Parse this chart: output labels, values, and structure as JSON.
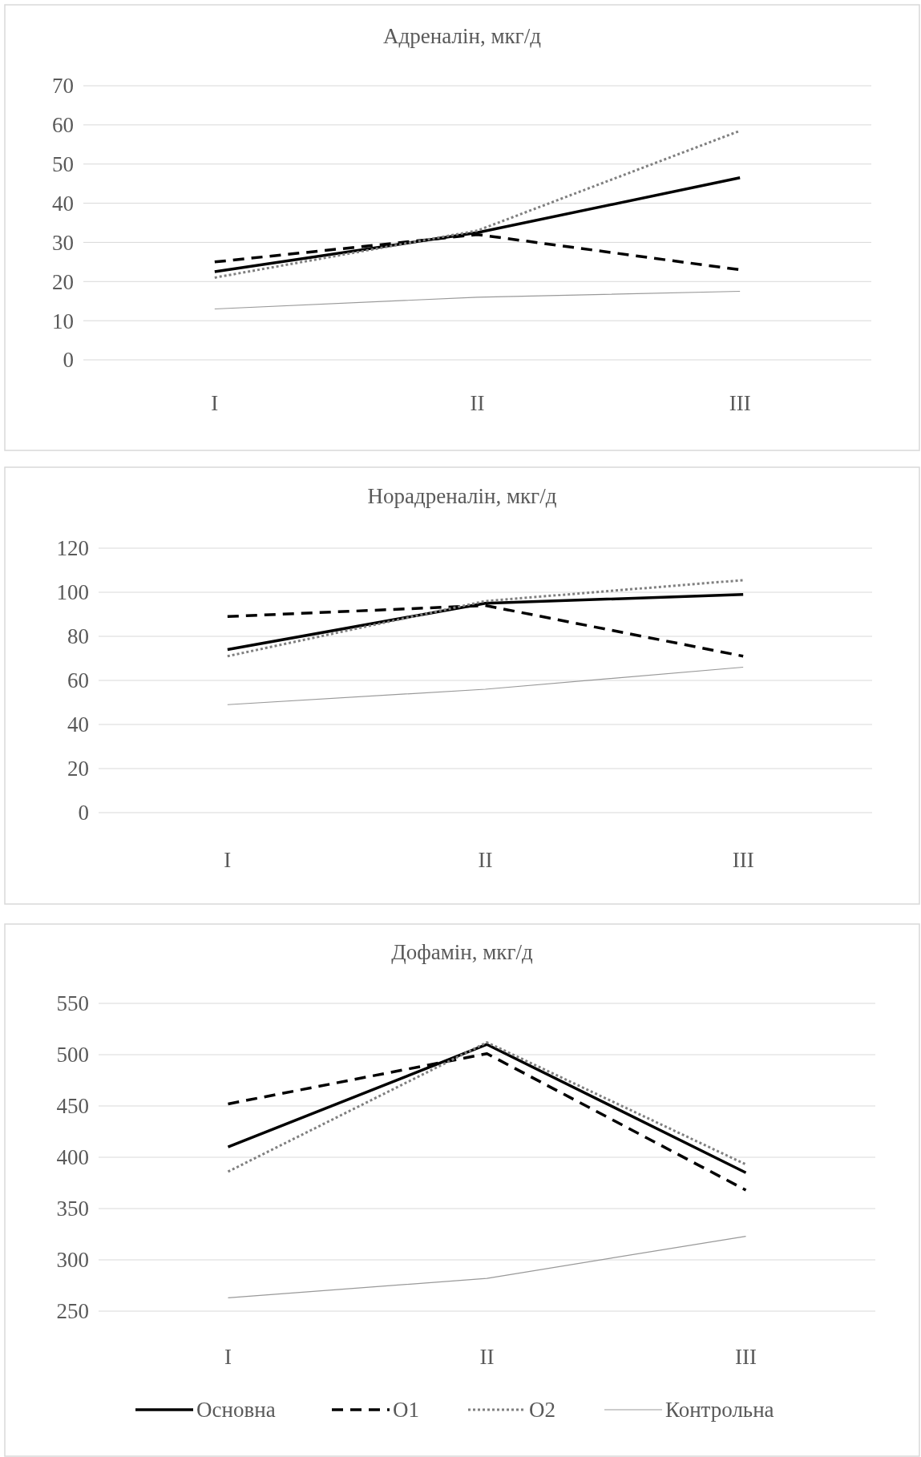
{
  "chart_data": [
    {
      "type": "line",
      "title": "Адреналін, мкг/д",
      "categories": [
        "I",
        "II",
        "III"
      ],
      "ylim": [
        0,
        70
      ],
      "yticks": [
        0,
        10,
        20,
        30,
        40,
        50,
        60,
        70
      ],
      "grid": "y",
      "legend": false,
      "series": [
        {
          "color": "#000000",
          "line_style": "solid",
          "values": [
            22.5,
            32.5,
            46.5
          ]
        },
        {
          "color": "#000000",
          "line_style": "dashed",
          "values": [
            25,
            32,
            23
          ]
        },
        {
          "color": "#808080",
          "line_style": "dotted",
          "values": [
            21,
            33,
            58.5
          ]
        },
        {
          "color": "#999999",
          "line_style": "solid",
          "values": [
            13,
            16,
            17.5
          ]
        }
      ]
    },
    {
      "type": "line",
      "title": "Норадреналін, мкг/д",
      "categories": [
        "I",
        "II",
        "III"
      ],
      "ylim": [
        0,
        120
      ],
      "yticks": [
        0,
        20,
        40,
        60,
        80,
        100,
        120
      ],
      "grid": "y",
      "legend": false,
      "series": [
        {
          "color": "#000000",
          "line_style": "solid",
          "values": [
            74,
            95,
            99
          ]
        },
        {
          "color": "#000000",
          "line_style": "dashed",
          "values": [
            89,
            94,
            71
          ]
        },
        {
          "color": "#808080",
          "line_style": "dotted",
          "values": [
            71,
            96,
            105.5
          ]
        },
        {
          "color": "#999999",
          "line_style": "solid",
          "values": [
            49,
            56,
            66
          ]
        }
      ]
    },
    {
      "type": "line",
      "title": "Дофамін, мкг/д",
      "categories": [
        "I",
        "II",
        "III"
      ],
      "ylim": [
        250,
        550
      ],
      "yticks": [
        250,
        300,
        350,
        400,
        450,
        500,
        550
      ],
      "grid": "y",
      "legend": "bottom",
      "series": [
        {
          "name": "Основна",
          "color": "#000000",
          "line_style": "solid",
          "values": [
            410,
            510,
            385
          ]
        },
        {
          "name": "О1",
          "color": "#000000",
          "line_style": "dashed",
          "values": [
            452,
            501,
            368
          ]
        },
        {
          "name": "О2",
          "color": "#808080",
          "line_style": "dotted",
          "values": [
            386,
            512,
            393
          ]
        },
        {
          "name": "Контрольна",
          "color": "#999999",
          "line_style": "solid",
          "values": [
            263,
            282,
            323
          ]
        }
      ]
    }
  ]
}
